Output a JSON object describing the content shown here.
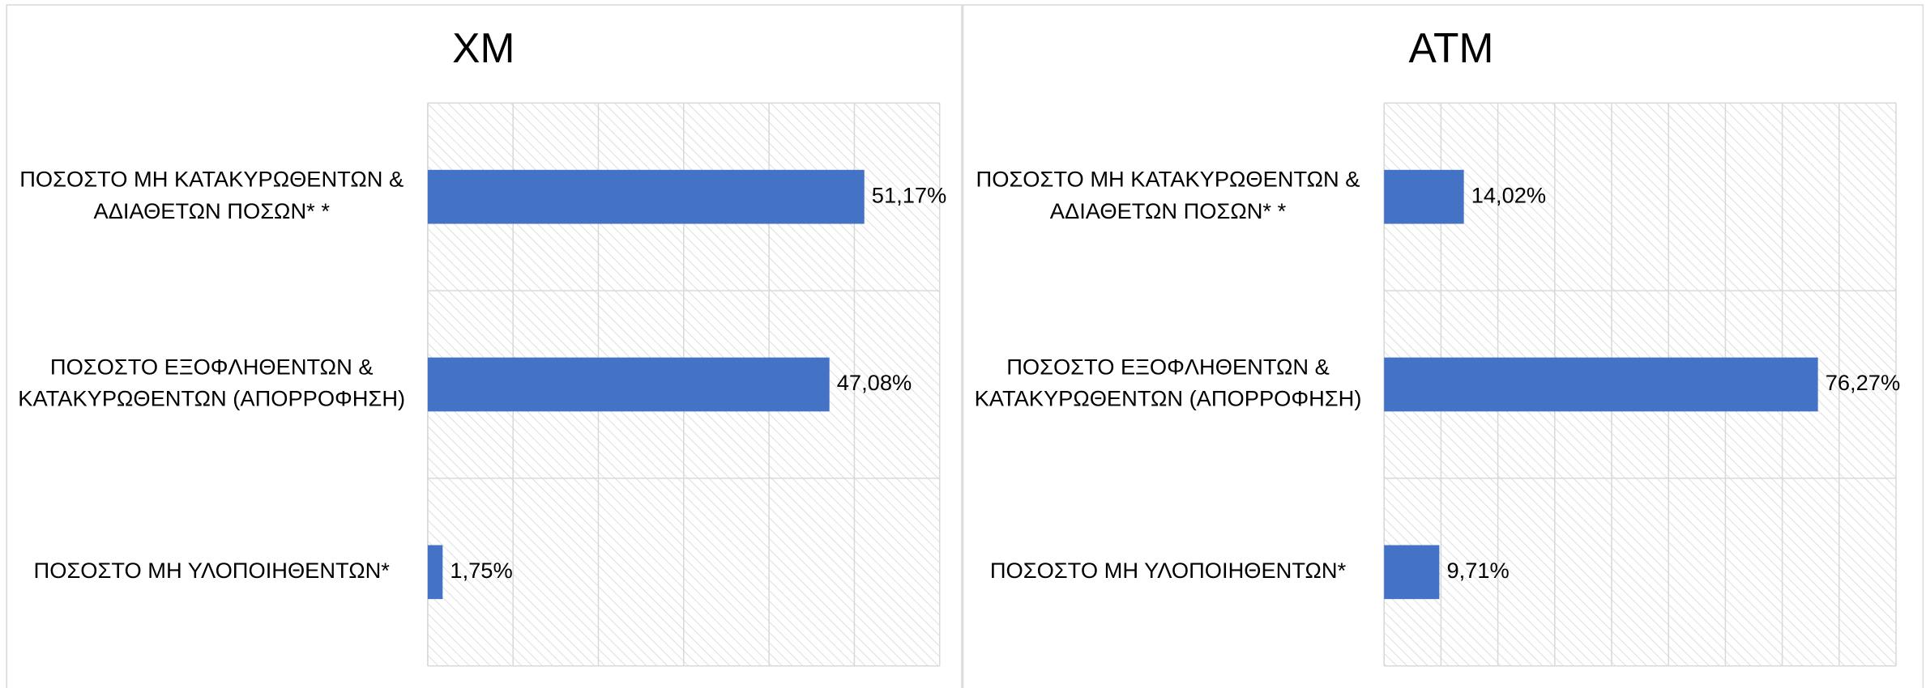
{
  "chart_data": [
    {
      "type": "bar",
      "orientation": "horizontal",
      "title": "ΧΜ",
      "categories": [
        "ΠΟΣΟΣΤΟ ΜΗ ΚΑΤΑΚΥΡΩΘΕΝΤΩΝ & ΑΔΙΑΘΕΤΩΝ ΠΟΣΩΝ* *",
        "ΠΟΣΟΣΤΟ ΕΞΟΦΛΗΘΕΝΤΩΝ & ΚΑΤΑΚΥΡΩΘΕΝΤΩΝ (ΑΠΟΡΡΟΦΗΣΗ)",
        "ΠΟΣΟΣΤΟ ΜΗ ΥΛΟΠΟΙΗΘΕΝΤΩΝ*"
      ],
      "values": [
        51.17,
        47.08,
        1.75
      ],
      "value_labels": [
        "51,17%",
        "47,08%",
        "1,75%"
      ],
      "color": "#4472c4",
      "xlim": [
        0,
        60
      ],
      "xticks": [
        0,
        10,
        20,
        30,
        40,
        50,
        60
      ],
      "grid": true
    },
    {
      "type": "bar",
      "orientation": "horizontal",
      "title": "ΑΤΜ",
      "categories": [
        "ΠΟΣΟΣΤΟ ΜΗ ΚΑΤΑΚΥΡΩΘΕΝΤΩΝ & ΑΔΙΑΘΕΤΩΝ ΠΟΣΩΝ* *",
        "ΠΟΣΟΣΤΟ ΕΞΟΦΛΗΘΕΝΤΩΝ & ΚΑΤΑΚΥΡΩΘΕΝΤΩΝ (ΑΠΟΡΡΟΦΗΣΗ)",
        "ΠΟΣΟΣΤΟ ΜΗ ΥΛΟΠΟΙΗΘΕΝΤΩΝ*"
      ],
      "values": [
        14.02,
        76.27,
        9.71
      ],
      "value_labels": [
        "14,02%",
        "76,27%",
        "9,71%"
      ],
      "color": "#4472c4",
      "xlim": [
        0,
        90
      ],
      "xticks": [
        0,
        10,
        20,
        30,
        40,
        50,
        60,
        70,
        80,
        90
      ],
      "grid": true
    }
  ]
}
